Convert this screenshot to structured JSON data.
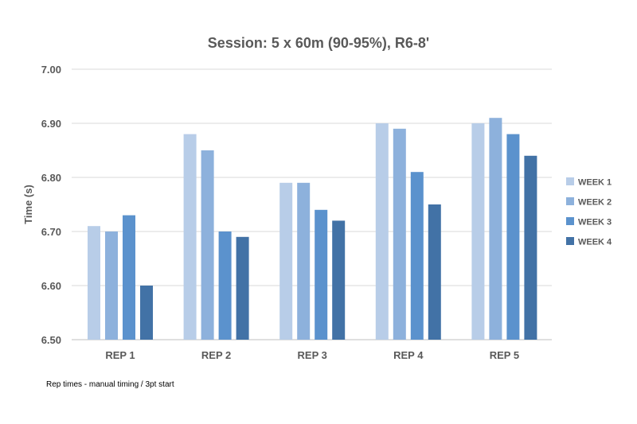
{
  "chart_data": {
    "type": "bar",
    "title": "Session: 5 x 60m (90-95%), R6-8'",
    "ylabel": "Time (s)",
    "xlabel": "",
    "ylim": [
      6.5,
      7.0
    ],
    "ytick_step": 0.1,
    "ytick_labels": [
      "6.50",
      "6.60",
      "6.70",
      "6.80",
      "6.90",
      "7.00"
    ],
    "categories": [
      "REP 1",
      "REP 2",
      "REP 3",
      "REP 4",
      "REP 5"
    ],
    "series": [
      {
        "name": "WEEK 1",
        "color": "#b8cde8",
        "values": [
          6.71,
          6.88,
          6.79,
          6.9,
          6.9
        ]
      },
      {
        "name": "WEEK 2",
        "color": "#8db1dc",
        "values": [
          6.7,
          6.85,
          6.79,
          6.89,
          6.91
        ]
      },
      {
        "name": "WEEK 3",
        "color": "#5b92cd",
        "values": [
          6.73,
          6.7,
          6.74,
          6.81,
          6.88
        ]
      },
      {
        "name": "WEEK 4",
        "color": "#4272a6",
        "values": [
          6.6,
          6.69,
          6.72,
          6.75,
          6.84
        ]
      }
    ],
    "grid": true,
    "legend_position": "right",
    "footnote": "Rep times - manual timing / 3pt start"
  }
}
